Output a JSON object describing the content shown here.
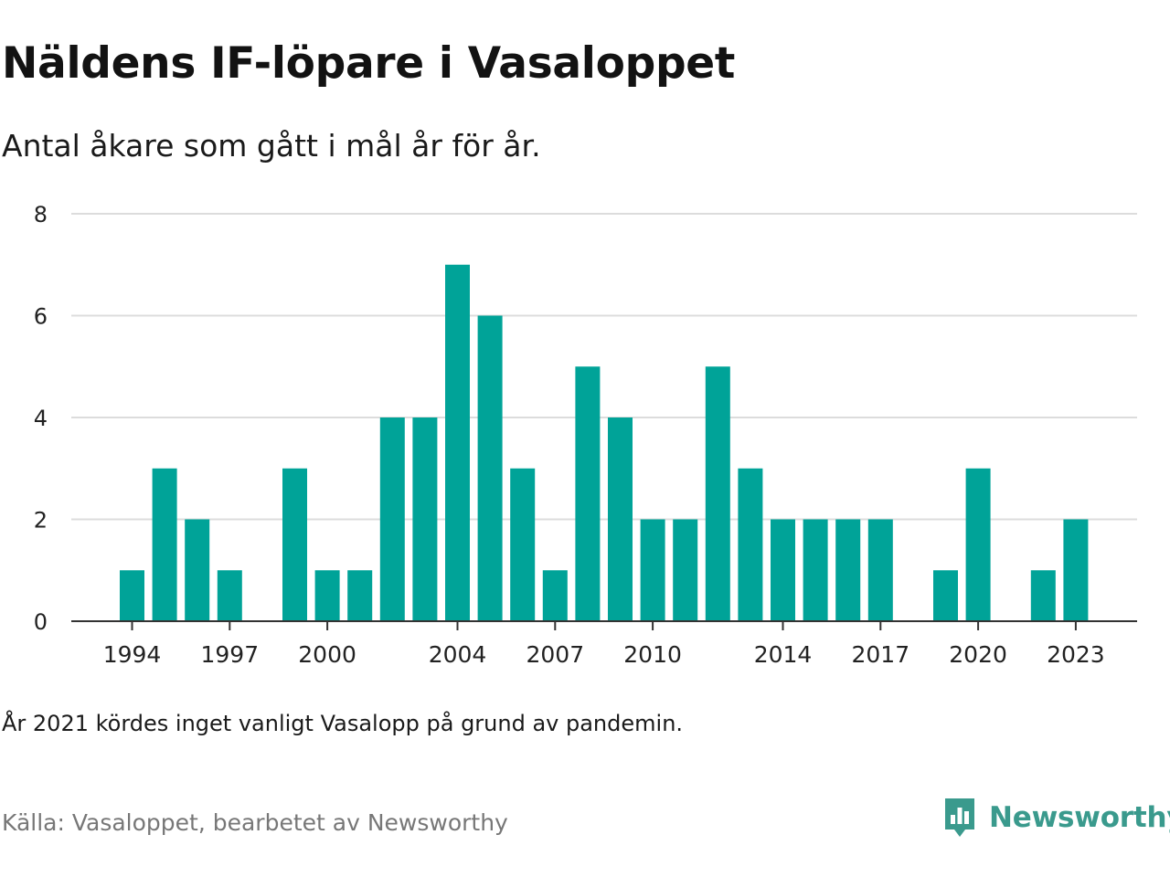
{
  "header": {
    "title": "Näldens IF-löpare i Vasaloppet",
    "subtitle": "Antal åkare som gått i mål år för år."
  },
  "footer": {
    "note": "År 2021 kördes inget vanligt Vasalopp på grund av pandemin.",
    "source": "Källa: Vasaloppet, bearbetet av Newsworthy"
  },
  "brand": {
    "name": "Newsworthy",
    "color": "#3a9a8d",
    "icon": "newsworthy-logo-icon"
  },
  "chart_data": {
    "type": "bar",
    "bar_color": "#00a398",
    "grid": true,
    "x": [
      1994,
      1995,
      1996,
      1997,
      1998,
      1999,
      2000,
      2001,
      2002,
      2003,
      2004,
      2005,
      2006,
      2007,
      2008,
      2009,
      2010,
      2011,
      2012,
      2013,
      2014,
      2015,
      2016,
      2017,
      2018,
      2019,
      2020,
      2021,
      2022,
      2023
    ],
    "values": [
      1,
      3,
      2,
      1,
      0,
      3,
      1,
      1,
      4,
      4,
      7,
      6,
      3,
      1,
      5,
      4,
      2,
      2,
      5,
      3,
      2,
      2,
      2,
      2,
      0,
      1,
      3,
      0,
      1,
      2
    ],
    "x_tick_labels": [
      "1994",
      "1997",
      "2000",
      "2004",
      "2007",
      "2010",
      "2014",
      "2017",
      "2020",
      "2023"
    ],
    "y_ticks": [
      0,
      2,
      4,
      6,
      8
    ],
    "ylim": [
      0,
      8
    ],
    "xlabel": "",
    "ylabel": ""
  }
}
